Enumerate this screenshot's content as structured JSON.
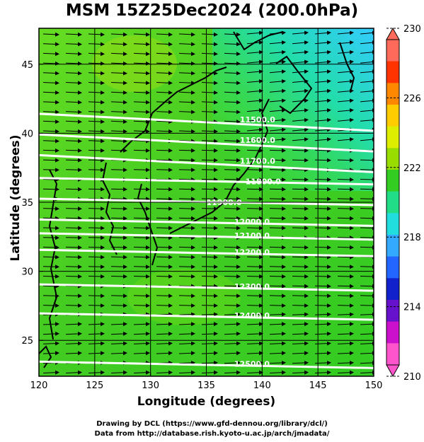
{
  "title": "MSM 15Z25Dec2024 (200.0hPa)",
  "map": {
    "xlabel": "Longitude (degrees)",
    "ylabel": "Latitude  (degrees)",
    "lon_range": [
      120,
      150
    ],
    "lat_range": [
      22.4,
      47.6
    ],
    "lon_ticks": [
      "120",
      "125",
      "130",
      "135",
      "140",
      "145",
      "150"
    ],
    "lat_ticks": [
      "25",
      "30",
      "35",
      "40",
      "45"
    ],
    "lon_tick_values": [
      120,
      125,
      130,
      135,
      140,
      145,
      150
    ],
    "lat_tick_values": [
      25,
      30,
      35,
      40,
      45
    ],
    "grid": true,
    "field": "temperature shading with wind vectors",
    "contour_labels": [
      {
        "text": "11500.0",
        "lon": 138.0,
        "lat": 41.0
      },
      {
        "text": "11600.0",
        "lon": 138.0,
        "lat": 39.5
      },
      {
        "text": "11700.0",
        "lon": 138.0,
        "lat": 38.0
      },
      {
        "text": "11800.0",
        "lon": 138.5,
        "lat": 36.5
      },
      {
        "text": "11900.0",
        "lon": 135.0,
        "lat": 35.0
      },
      {
        "text": "12000.0",
        "lon": 137.5,
        "lat": 33.6
      },
      {
        "text": "12100.0",
        "lon": 137.5,
        "lat": 32.6
      },
      {
        "text": "12200.0",
        "lon": 137.5,
        "lat": 31.4
      },
      {
        "text": "12300.0",
        "lon": 137.5,
        "lat": 28.9
      },
      {
        "text": "12400.0",
        "lon": 137.5,
        "lat": 26.8
      },
      {
        "text": "12500.0",
        "lon": 137.5,
        "lat": 23.3
      }
    ],
    "contour_lats": [
      41.0,
      39.5,
      38.0,
      36.6,
      35.1,
      33.6,
      32.6,
      31.4,
      28.9,
      26.8,
      23.3
    ]
  },
  "colorbar": {
    "labels": [
      "230",
      "226",
      "222",
      "218",
      "214",
      "210"
    ],
    "values": [
      230,
      226,
      222,
      218,
      214,
      210
    ],
    "colors": [
      "#ff6a5a",
      "#ff3300",
      "#ff8800",
      "#ffcc00",
      "#ddee00",
      "#99dd00",
      "#33cc22",
      "#22dd88",
      "#22dddd",
      "#33aaff",
      "#2266ff",
      "#1122cc",
      "#6611cc",
      "#cc11cc",
      "#ff55cc"
    ]
  },
  "credits": {
    "line1": "Drawing by DCL (https://www.gfd-dennou.org/library/dcl/)",
    "line2": "Data from http://database.rish.kyoto-u.ac.jp/arch/jmadata/"
  }
}
